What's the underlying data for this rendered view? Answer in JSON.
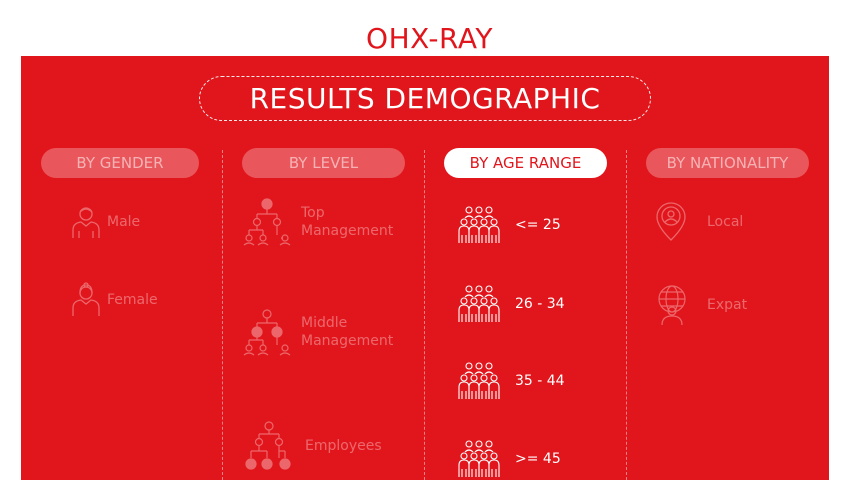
{
  "header": {
    "app_title": "OHX-RAY"
  },
  "main": {
    "title": "RESULTS DEMOGRAPHIC",
    "tabs": [
      {
        "label": "BY GENDER",
        "active": false
      },
      {
        "label": "BY LEVEL",
        "active": false
      },
      {
        "label": "BY AGE RANGE",
        "active": true
      },
      {
        "label": "BY NATIONALITY",
        "active": false
      }
    ],
    "gender": {
      "items": [
        {
          "label": "Male",
          "icon": "male-person-icon"
        },
        {
          "label": "Female",
          "icon": "female-person-icon"
        }
      ]
    },
    "level": {
      "items": [
        {
          "line1": "Top",
          "line2": "Management",
          "icon": "org-chart-top-icon"
        },
        {
          "line1": "Middle",
          "line2": "Management",
          "icon": "org-chart-middle-icon"
        },
        {
          "line1": "Employees",
          "line2": "",
          "icon": "org-chart-employees-icon"
        }
      ]
    },
    "age": {
      "items": [
        {
          "label": "<= 25",
          "icon": "people-group-icon"
        },
        {
          "label": "26 - 34",
          "icon": "people-group-icon"
        },
        {
          "label": "35 - 44",
          "icon": "people-group-icon"
        },
        {
          "label": ">= 45",
          "icon": "people-group-icon"
        }
      ]
    },
    "nationality": {
      "items": [
        {
          "label": "Local",
          "icon": "location-pin-person-icon"
        },
        {
          "label": "Expat",
          "icon": "globe-person-icon"
        }
      ]
    }
  },
  "colors": {
    "brand_red": "#e1161c",
    "white": "#ffffff"
  }
}
